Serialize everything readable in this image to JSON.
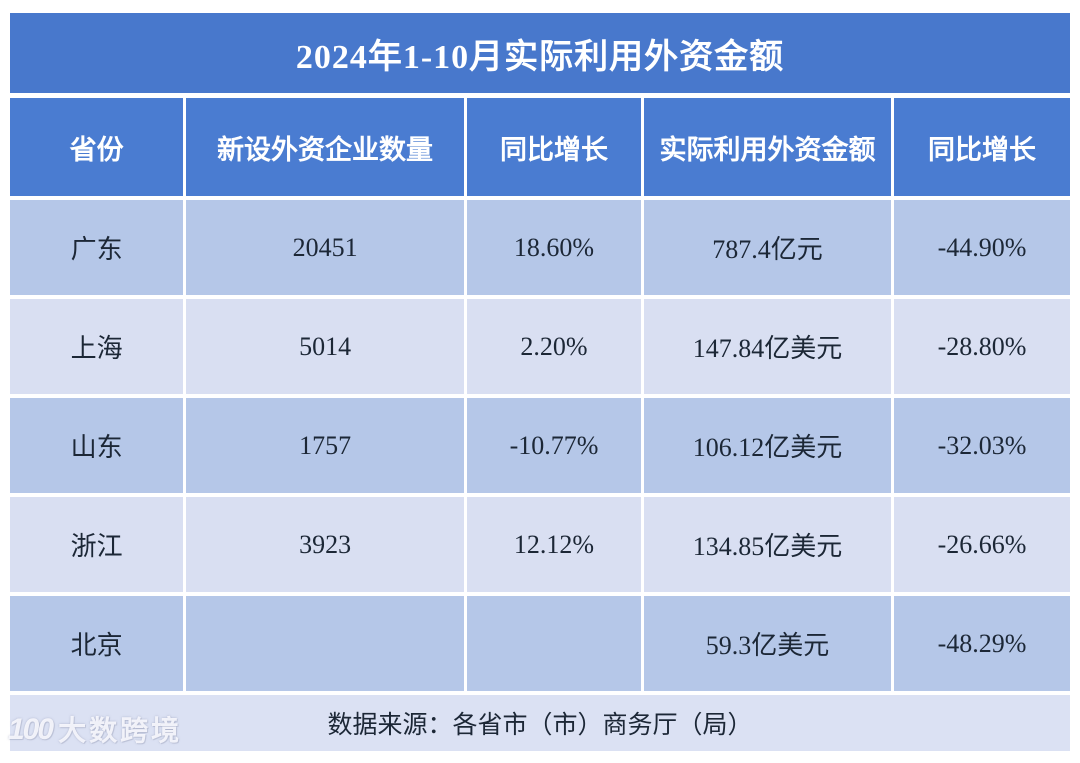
{
  "chart_data": {
    "type": "table",
    "title": "2024年1-10月实际利用外资金额",
    "columns": [
      "省份",
      "新设外资企业数量",
      "同比增长",
      "实际利用外资金额",
      "同比增长"
    ],
    "rows": [
      [
        "广东",
        "20451",
        "18.60%",
        "787.4亿元",
        "-44.90%"
      ],
      [
        "上海",
        "5014",
        "2.20%",
        "147.84亿美元",
        "-28.80%"
      ],
      [
        "山东",
        "1757",
        "-10.77%",
        "106.12亿美元",
        "-32.03%"
      ],
      [
        "浙江",
        "3923",
        "12.12%",
        "134.85亿美元",
        "-26.66%"
      ],
      [
        "北京",
        "",
        "",
        "59.3亿美元",
        "-48.29%"
      ]
    ],
    "source_note": "数据来源：各省市（市）商务厅（局）",
    "layout_hints": {
      "header_position": "top",
      "grid": "white gaps between cells",
      "row_striping": "odd rows #B5C7E8, even rows #D9DFF2"
    }
  },
  "watermark": {
    "logo_text": "100",
    "brand_text": "大数跨境"
  },
  "colors": {
    "title_bg": "#4878CC",
    "header_bg": "#4A7CD1",
    "row_odd_bg": "#B5C7E8",
    "row_even_bg": "#D9DFF2",
    "footer_bg": "#DBE1F3",
    "header_text": "#FFFFFF",
    "body_text": "#1C2736"
  }
}
